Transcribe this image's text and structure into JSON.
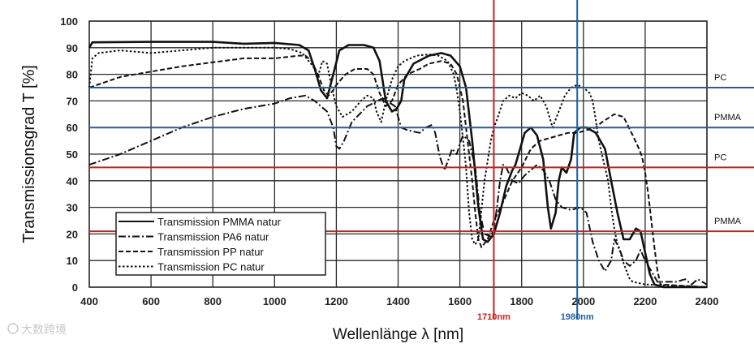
{
  "chart_data": {
    "type": "line",
    "title": "",
    "xlabel": "Wellenlänge λ [nm]",
    "ylabel": "Transmissionsgrad T [%]",
    "xlim": [
      400,
      2400
    ],
    "ylim": [
      0,
      100
    ],
    "xticks": [
      400,
      600,
      800,
      1000,
      1200,
      1400,
      1600,
      1800,
      2000,
      2200,
      2400
    ],
    "yticks": [
      0,
      10,
      20,
      30,
      40,
      50,
      60,
      70,
      80,
      90,
      100
    ],
    "grid": true,
    "legend_position": "bottom-left",
    "series": [
      {
        "name": "Transmission PMMA natur",
        "style": "solid",
        "color": "#111111",
        "points": [
          [
            400,
            90
          ],
          [
            410,
            92
          ],
          [
            600,
            92.2
          ],
          [
            800,
            92.2
          ],
          [
            900,
            91.5
          ],
          [
            1000,
            91.8
          ],
          [
            1080,
            91
          ],
          [
            1110,
            89
          ],
          [
            1130,
            82
          ],
          [
            1150,
            74
          ],
          [
            1170,
            71
          ],
          [
            1190,
            80
          ],
          [
            1210,
            89
          ],
          [
            1240,
            91
          ],
          [
            1290,
            91
          ],
          [
            1320,
            90
          ],
          [
            1340,
            85
          ],
          [
            1360,
            70
          ],
          [
            1380,
            66
          ],
          [
            1395,
            67
          ],
          [
            1410,
            70
          ],
          [
            1420,
            78
          ],
          [
            1450,
            84
          ],
          [
            1500,
            87
          ],
          [
            1540,
            88
          ],
          [
            1570,
            87
          ],
          [
            1600,
            83
          ],
          [
            1620,
            75
          ],
          [
            1640,
            55
          ],
          [
            1660,
            30
          ],
          [
            1675,
            18
          ],
          [
            1690,
            17
          ],
          [
            1710,
            20
          ],
          [
            1730,
            28
          ],
          [
            1750,
            38
          ],
          [
            1770,
            44
          ],
          [
            1780,
            46
          ],
          [
            1790,
            50
          ],
          [
            1810,
            58
          ],
          [
            1830,
            60
          ],
          [
            1850,
            57
          ],
          [
            1870,
            48
          ],
          [
            1885,
            30
          ],
          [
            1895,
            22
          ],
          [
            1910,
            28
          ],
          [
            1920,
            40
          ],
          [
            1930,
            45
          ],
          [
            1945,
            43
          ],
          [
            1960,
            48
          ],
          [
            1970,
            58
          ],
          [
            1990,
            60
          ],
          [
            2010,
            60
          ],
          [
            2040,
            58
          ],
          [
            2070,
            52
          ],
          [
            2090,
            40
          ],
          [
            2110,
            28
          ],
          [
            2130,
            18
          ],
          [
            2150,
            18
          ],
          [
            2170,
            22
          ],
          [
            2185,
            21
          ],
          [
            2200,
            13
          ],
          [
            2215,
            5
          ],
          [
            2230,
            1
          ],
          [
            2260,
            0
          ],
          [
            2400,
            0
          ]
        ]
      },
      {
        "name": "Transmission PA6 natur",
        "style": "dashdot",
        "color": "#111111",
        "points": [
          [
            400,
            46
          ],
          [
            500,
            50
          ],
          [
            600,
            55
          ],
          [
            700,
            60
          ],
          [
            800,
            64
          ],
          [
            900,
            67
          ],
          [
            1000,
            69
          ],
          [
            1050,
            71
          ],
          [
            1100,
            72
          ],
          [
            1130,
            70
          ],
          [
            1150,
            68
          ],
          [
            1170,
            66
          ],
          [
            1190,
            60
          ],
          [
            1200,
            53
          ],
          [
            1210,
            52
          ],
          [
            1225,
            55
          ],
          [
            1250,
            62
          ],
          [
            1300,
            68
          ],
          [
            1350,
            71
          ],
          [
            1390,
            68
          ],
          [
            1410,
            60
          ],
          [
            1430,
            59
          ],
          [
            1470,
            58
          ],
          [
            1490,
            60
          ],
          [
            1510,
            61
          ],
          [
            1520,
            58
          ],
          [
            1535,
            49
          ],
          [
            1550,
            44
          ],
          [
            1560,
            47
          ],
          [
            1575,
            52
          ],
          [
            1590,
            50
          ],
          [
            1600,
            54
          ],
          [
            1610,
            57
          ],
          [
            1630,
            55
          ],
          [
            1650,
            45
          ],
          [
            1665,
            28
          ],
          [
            1680,
            20
          ],
          [
            1700,
            19
          ],
          [
            1710,
            22
          ],
          [
            1720,
            30
          ],
          [
            1730,
            40
          ],
          [
            1740,
            46
          ],
          [
            1750,
            45
          ],
          [
            1770,
            40
          ],
          [
            1790,
            39
          ],
          [
            1810,
            42
          ],
          [
            1830,
            44
          ],
          [
            1850,
            46
          ],
          [
            1870,
            44
          ],
          [
            1890,
            40
          ],
          [
            1910,
            33
          ],
          [
            1930,
            30
          ],
          [
            1960,
            29
          ],
          [
            1990,
            30
          ],
          [
            2010,
            28
          ],
          [
            2030,
            17
          ],
          [
            2050,
            10
          ],
          [
            2070,
            6
          ],
          [
            2090,
            10
          ],
          [
            2100,
            18
          ],
          [
            2115,
            15
          ],
          [
            2130,
            10
          ],
          [
            2150,
            8
          ],
          [
            2170,
            10
          ],
          [
            2185,
            14
          ],
          [
            2200,
            10
          ],
          [
            2220,
            6
          ],
          [
            2240,
            2
          ],
          [
            2260,
            2
          ],
          [
            2300,
            2
          ],
          [
            2330,
            3
          ],
          [
            2350,
            1
          ],
          [
            2370,
            3
          ],
          [
            2400,
            1
          ]
        ]
      },
      {
        "name": "Transmission PP natur",
        "style": "dashed",
        "color": "#111111",
        "points": [
          [
            400,
            75
          ],
          [
            500,
            79
          ],
          [
            600,
            81
          ],
          [
            700,
            83
          ],
          [
            800,
            84.5
          ],
          [
            900,
            86
          ],
          [
            1000,
            86
          ],
          [
            1080,
            87
          ],
          [
            1100,
            87
          ],
          [
            1120,
            85
          ],
          [
            1140,
            80
          ],
          [
            1160,
            74
          ],
          [
            1175,
            72
          ],
          [
            1190,
            74
          ],
          [
            1200,
            76
          ],
          [
            1230,
            80
          ],
          [
            1260,
            82
          ],
          [
            1300,
            82
          ],
          [
            1320,
            80
          ],
          [
            1340,
            73
          ],
          [
            1360,
            68
          ],
          [
            1380,
            70
          ],
          [
            1400,
            76
          ],
          [
            1430,
            80
          ],
          [
            1470,
            82
          ],
          [
            1500,
            84
          ],
          [
            1540,
            85
          ],
          [
            1570,
            84
          ],
          [
            1590,
            80
          ],
          [
            1610,
            70
          ],
          [
            1625,
            55
          ],
          [
            1640,
            40
          ],
          [
            1650,
            28
          ],
          [
            1660,
            18
          ],
          [
            1670,
            15
          ],
          [
            1690,
            18
          ],
          [
            1710,
            25
          ],
          [
            1740,
            32
          ],
          [
            1770,
            40
          ],
          [
            1800,
            45
          ],
          [
            1830,
            52
          ],
          [
            1860,
            55
          ],
          [
            1890,
            56
          ],
          [
            1920,
            57
          ],
          [
            1950,
            58
          ],
          [
            1980,
            58
          ],
          [
            2010,
            59
          ],
          [
            2040,
            60
          ],
          [
            2060,
            62
          ],
          [
            2100,
            65
          ],
          [
            2130,
            64
          ],
          [
            2160,
            57
          ],
          [
            2180,
            52
          ],
          [
            2190,
            49
          ],
          [
            2200,
            43
          ],
          [
            2210,
            35
          ],
          [
            2220,
            25
          ],
          [
            2230,
            15
          ],
          [
            2240,
            6
          ],
          [
            2250,
            1
          ],
          [
            2400,
            0
          ]
        ]
      },
      {
        "name": "Transmission PC natur",
        "style": "dotted",
        "color": "#111111",
        "points": [
          [
            400,
            75
          ],
          [
            410,
            86
          ],
          [
            430,
            88
          ],
          [
            500,
            89
          ],
          [
            600,
            88
          ],
          [
            700,
            89
          ],
          [
            800,
            90
          ],
          [
            900,
            90
          ],
          [
            1000,
            90
          ],
          [
            1050,
            89.5
          ],
          [
            1090,
            88
          ],
          [
            1110,
            85
          ],
          [
            1125,
            83
          ],
          [
            1140,
            79
          ],
          [
            1155,
            85
          ],
          [
            1170,
            84
          ],
          [
            1185,
            75
          ],
          [
            1200,
            68
          ],
          [
            1220,
            64
          ],
          [
            1250,
            66
          ],
          [
            1280,
            70
          ],
          [
            1300,
            72
          ],
          [
            1320,
            71
          ],
          [
            1330,
            66
          ],
          [
            1345,
            62
          ],
          [
            1360,
            70
          ],
          [
            1380,
            78
          ],
          [
            1400,
            83
          ],
          [
            1420,
            85
          ],
          [
            1440,
            86
          ],
          [
            1460,
            87
          ],
          [
            1500,
            87.5
          ],
          [
            1530,
            87
          ],
          [
            1560,
            85
          ],
          [
            1580,
            80
          ],
          [
            1590,
            74
          ],
          [
            1600,
            66
          ],
          [
            1610,
            56
          ],
          [
            1620,
            45
          ],
          [
            1630,
            28
          ],
          [
            1640,
            18
          ],
          [
            1650,
            16
          ],
          [
            1660,
            18
          ],
          [
            1680,
            40
          ],
          [
            1700,
            55
          ],
          [
            1710,
            60
          ],
          [
            1720,
            63
          ],
          [
            1740,
            70
          ],
          [
            1760,
            72
          ],
          [
            1780,
            71
          ],
          [
            1800,
            73
          ],
          [
            1820,
            72
          ],
          [
            1840,
            70
          ],
          [
            1860,
            72
          ],
          [
            1880,
            68
          ],
          [
            1900,
            60
          ],
          [
            1920,
            66
          ],
          [
            1940,
            72
          ],
          [
            1960,
            75
          ],
          [
            1980,
            76
          ],
          [
            2000,
            75
          ],
          [
            2020,
            73
          ],
          [
            2030,
            70
          ],
          [
            2040,
            63
          ],
          [
            2050,
            55
          ],
          [
            2060,
            50
          ],
          [
            2080,
            40
          ],
          [
            2090,
            30
          ],
          [
            2100,
            22
          ],
          [
            2110,
            16
          ],
          [
            2120,
            13
          ],
          [
            2130,
            9
          ],
          [
            2140,
            6
          ],
          [
            2150,
            3
          ],
          [
            2160,
            2
          ],
          [
            2200,
            1
          ],
          [
            2400,
            0
          ]
        ]
      }
    ],
    "reference_lines": {
      "horizontal": [
        {
          "y": 75,
          "label": "PC",
          "color": "#1f5f9e"
        },
        {
          "y": 60,
          "label": "PMMA",
          "color": "#1f5f9e"
        },
        {
          "y": 45,
          "label": "PC",
          "color": "#cc1f1f"
        },
        {
          "y": 21,
          "label": "PMMA",
          "color": "#cc1f1f"
        }
      ],
      "vertical": [
        {
          "x": 1710,
          "label": "1710nm",
          "color": "#cc1f1f"
        },
        {
          "x": 1980,
          "label": "1980nm",
          "color": "#1f5f9e"
        }
      ]
    },
    "watermark": "大数跨境"
  }
}
